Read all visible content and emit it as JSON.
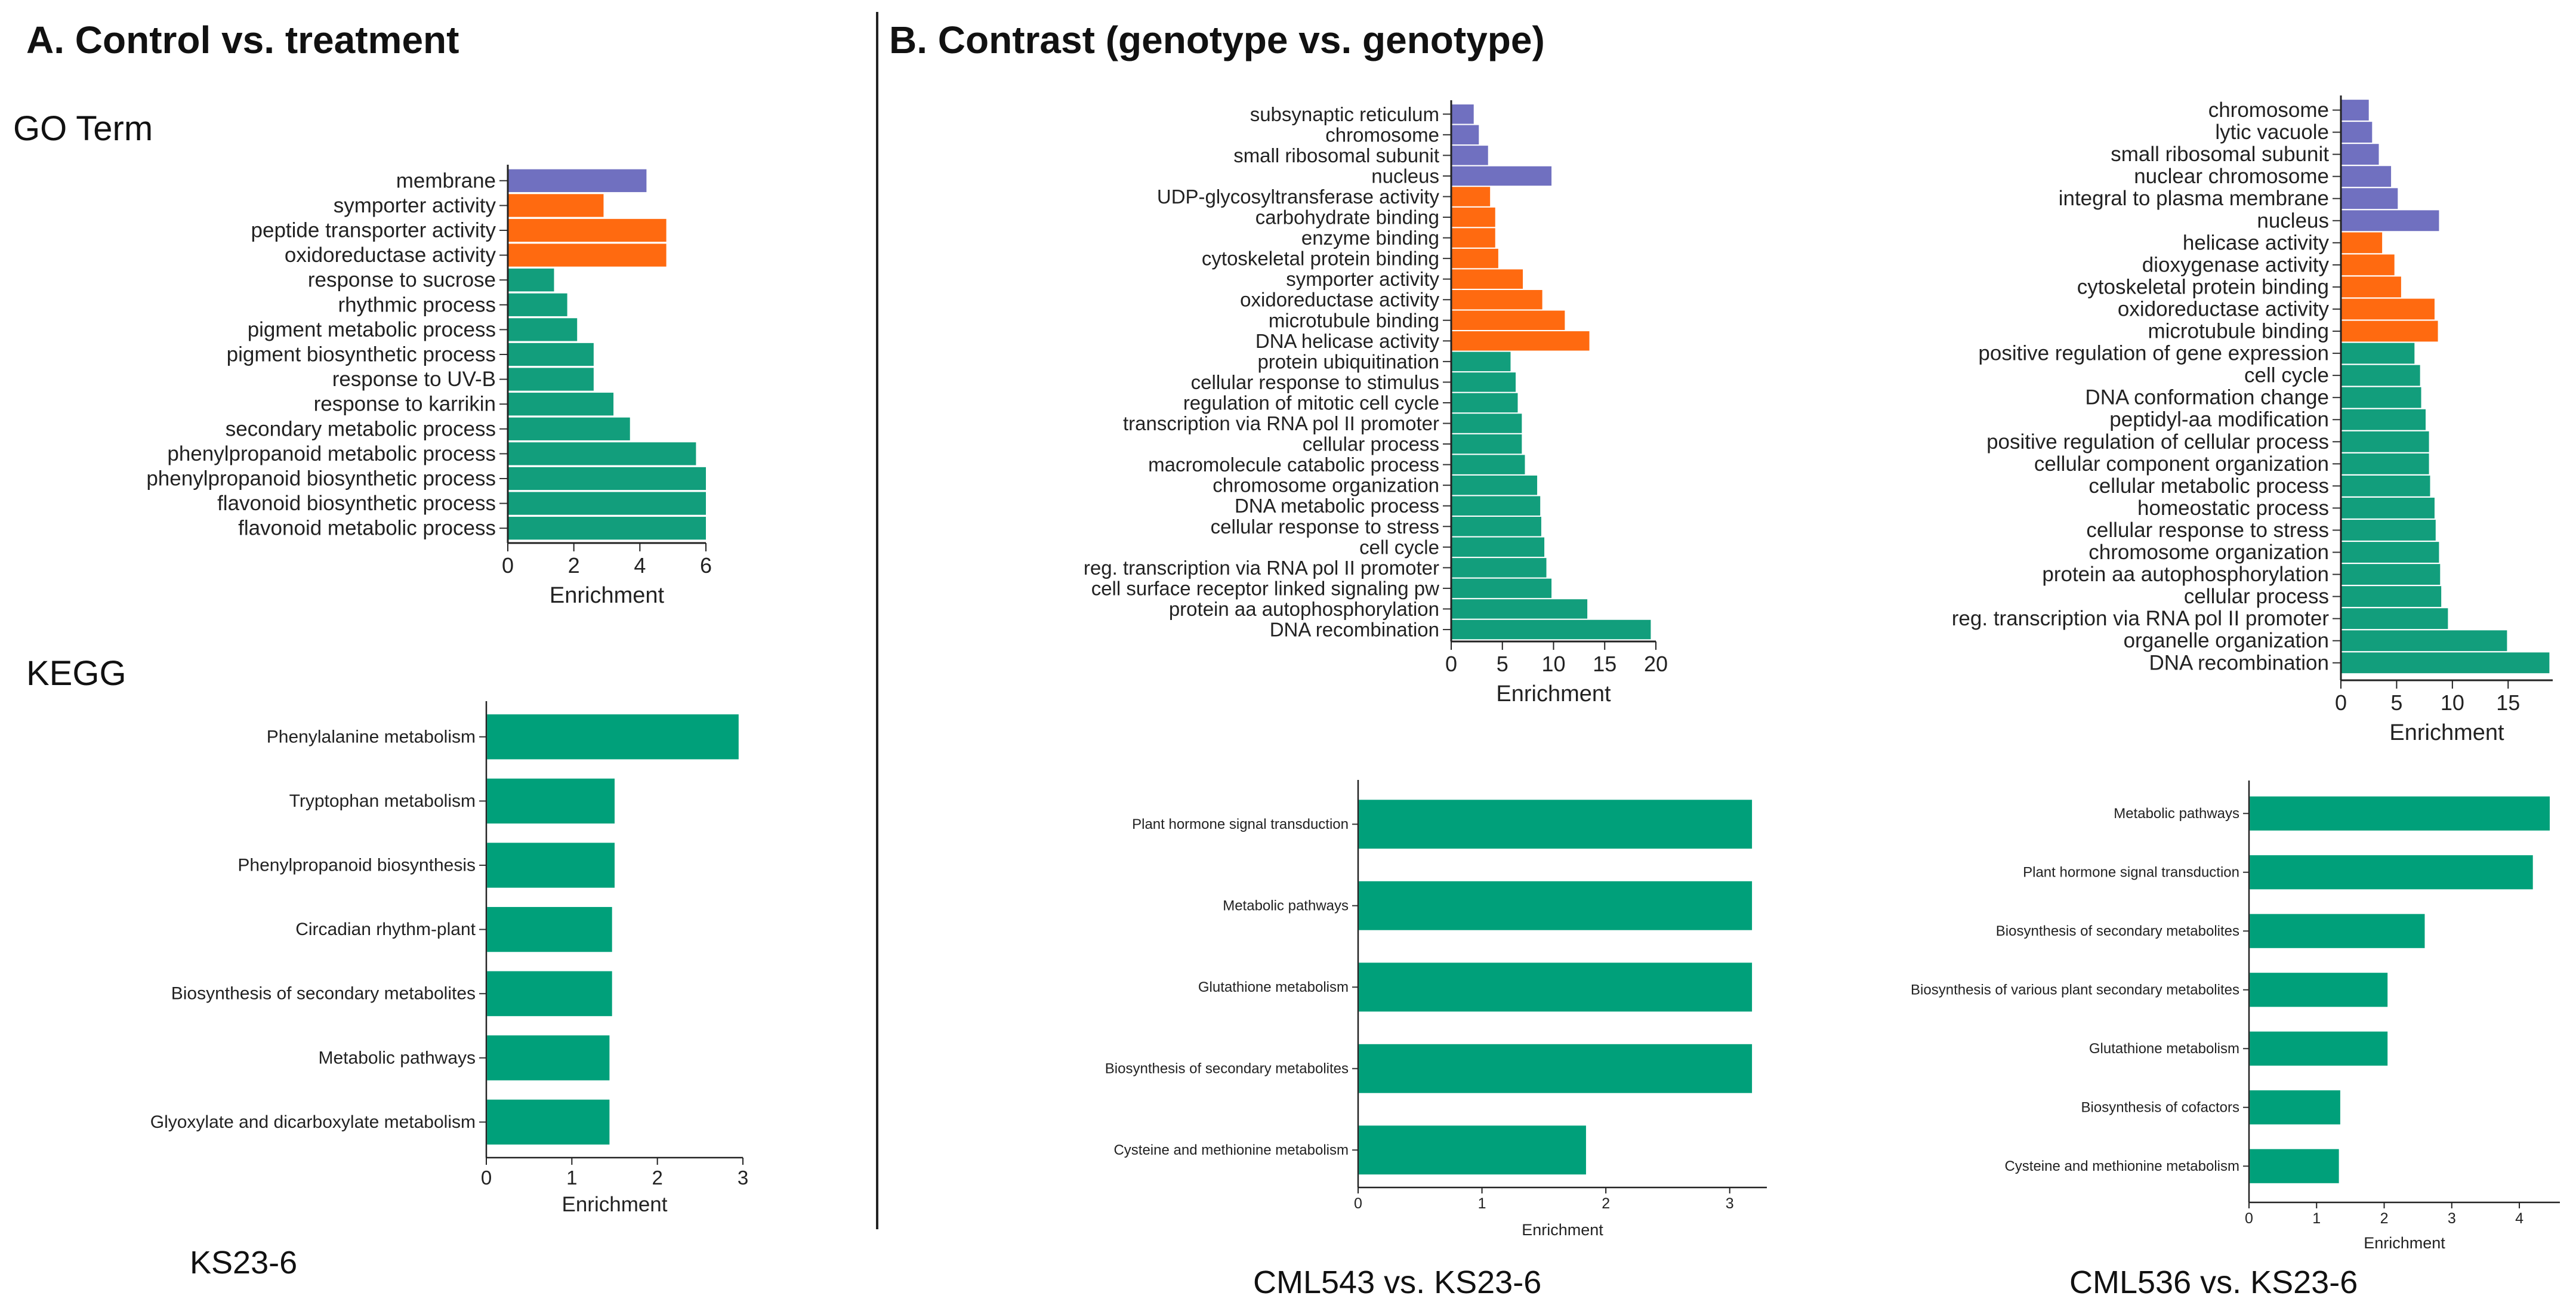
{
  "titles": {
    "panel_a": "A. Control vs. treatment",
    "panel_b": "B. Contrast (genotype vs. genotype)",
    "go_term": "GO Term",
    "kegg": "KEGG"
  },
  "captions": {
    "a": "KS23-6",
    "b1": "CML543 vs. KS23-6",
    "b2": "CML536 vs. KS23-6"
  },
  "colors": {
    "cellular_component": "#7070c0",
    "molecular_function": "#ff6a10",
    "biological_process": "#129e7c",
    "kegg": "#00a07a"
  },
  "chart_data": [
    {
      "id": "go_a",
      "type": "bar",
      "orientation": "horizontal",
      "xlabel": "Enrichment",
      "ylabel": "",
      "xlim": [
        0,
        6
      ],
      "ticks": [
        0,
        2,
        4,
        6
      ],
      "grid": false,
      "categories": [
        "membrane",
        "symporter activity",
        "peptide transporter activity",
        "oxidoreductase activity",
        "response to sucrose",
        "rhythmic process",
        "pigment metabolic process",
        "pigment biosynthetic process",
        "response to UV-B",
        "response to karrikin",
        "secondary metabolic process",
        "phenylpropanoid metabolic process",
        "phenylpropanoid biosynthetic process",
        "flavonoid biosynthetic process",
        "flavonoid metabolic process"
      ],
      "values": [
        4.2,
        2.9,
        4.8,
        4.8,
        1.4,
        1.8,
        2.1,
        2.6,
        2.6,
        3.2,
        3.7,
        5.7,
        6.0,
        6.0,
        6.0
      ],
      "groups": [
        "cc",
        "mf",
        "mf",
        "mf",
        "bp",
        "bp",
        "bp",
        "bp",
        "bp",
        "bp",
        "bp",
        "bp",
        "bp",
        "bp",
        "bp"
      ]
    },
    {
      "id": "kegg_a",
      "type": "bar",
      "orientation": "horizontal",
      "xlabel": "Enrichment",
      "ylabel": "",
      "xlim": [
        0,
        3
      ],
      "ticks": [
        0,
        1,
        2,
        3
      ],
      "grid": false,
      "categories": [
        "Phenylalanine metabolism",
        "Tryptophan metabolism",
        "Phenylpropanoid biosynthesis",
        "Circadian rhythm-plant",
        "Biosynthesis of secondary metabolites",
        "Metabolic pathways",
        "Glyoxylate and dicarboxylate metabolism"
      ],
      "values": [
        2.95,
        1.5,
        1.5,
        1.47,
        1.47,
        1.44,
        1.44
      ]
    },
    {
      "id": "go_b1",
      "type": "bar",
      "orientation": "horizontal",
      "xlabel": "Enrichment",
      "ylabel": "",
      "xlim": [
        0,
        20
      ],
      "ticks": [
        0,
        5,
        10,
        15,
        20
      ],
      "grid": false,
      "categories": [
        "subsynaptic reticulum",
        "chromosome",
        "small ribosomal subunit",
        "nucleus",
        "UDP-glycosyltransferase activity",
        "carbohydrate binding",
        "enzyme binding",
        "cytoskeletal protein binding",
        "symporter activity",
        "oxidoreductase activity",
        "microtubule binding",
        "DNA helicase activity",
        "protein ubiquitination",
        "cellular response to stimulus",
        "regulation of mitotic cell cycle",
        "transcription via RNA pol II promoter",
        "cellular process",
        "macromolecule catabolic process",
        "chromosome organization",
        "DNA metabolic process",
        "cellular response to stress",
        "cell cycle",
        "reg. transcription via RNA pol II promoter",
        "cell surface receptor linked signaling pw",
        "protein aa autophosphorylation",
        "DNA recombination"
      ],
      "values": [
        2.2,
        2.7,
        3.6,
        9.8,
        3.8,
        4.3,
        4.3,
        4.6,
        7.0,
        8.9,
        11.1,
        13.5,
        5.8,
        6.3,
        6.5,
        6.9,
        6.9,
        7.2,
        8.4,
        8.7,
        8.8,
        9.1,
        9.3,
        9.8,
        13.3,
        19.5
      ],
      "groups": [
        "cc",
        "cc",
        "cc",
        "cc",
        "mf",
        "mf",
        "mf",
        "mf",
        "mf",
        "mf",
        "mf",
        "mf",
        "bp",
        "bp",
        "bp",
        "bp",
        "bp",
        "bp",
        "bp",
        "bp",
        "bp",
        "bp",
        "bp",
        "bp",
        "bp",
        "bp"
      ]
    },
    {
      "id": "go_b2",
      "type": "bar",
      "orientation": "horizontal",
      "xlabel": "Enrichment",
      "ylabel": "",
      "xlim": [
        0,
        19
      ],
      "ticks": [
        0,
        5,
        10,
        15
      ],
      "grid": false,
      "categories": [
        "chromosome",
        "lytic vacuole",
        "small ribosomal subunit",
        "nuclear chromosome",
        "integral to plasma membrane",
        "nucleus",
        "helicase activity",
        "dioxygenase activity",
        "cytoskeletal protein binding",
        "oxidoreductase activity",
        "microtubule binding",
        "positive regulation of gene expression",
        "cell cycle",
        "DNA conformation change",
        "peptidyl-aa modification",
        "positive regulation of cellular process",
        "cellular component organization",
        "cellular metabolic process",
        "homeostatic process",
        "cellular response to stress",
        "chromosome organization",
        "protein aa autophosphorylation",
        "cellular process",
        "reg. transcription via RNA pol II promoter",
        "organelle organization",
        "DNA recombination"
      ],
      "values": [
        2.5,
        2.8,
        3.4,
        4.5,
        5.1,
        8.8,
        3.7,
        4.8,
        5.4,
        8.4,
        8.7,
        6.6,
        7.1,
        7.2,
        7.6,
        7.9,
        7.9,
        8.0,
        8.4,
        8.5,
        8.8,
        8.9,
        9.0,
        9.6,
        14.9,
        18.7
      ],
      "groups": [
        "cc",
        "cc",
        "cc",
        "cc",
        "cc",
        "cc",
        "mf",
        "mf",
        "mf",
        "mf",
        "mf",
        "bp",
        "bp",
        "bp",
        "bp",
        "bp",
        "bp",
        "bp",
        "bp",
        "bp",
        "bp",
        "bp",
        "bp",
        "bp",
        "bp",
        "bp"
      ]
    },
    {
      "id": "kegg_b1",
      "type": "bar",
      "orientation": "horizontal",
      "xlabel": "Enrichment",
      "ylabel": "",
      "xlim": [
        0,
        3.3
      ],
      "ticks": [
        0,
        1,
        2,
        3
      ],
      "grid": false,
      "categories": [
        "Plant hormone signal transduction",
        "Metabolic pathways",
        "Glutathione metabolism",
        "Biosynthesis of secondary metabolites",
        "Cysteine and methionine metabolism"
      ],
      "values": [
        3.18,
        3.18,
        3.18,
        3.18,
        1.84
      ]
    },
    {
      "id": "kegg_b2",
      "type": "bar",
      "orientation": "horizontal",
      "xlabel": "Enrichment",
      "ylabel": "",
      "xlim": [
        0,
        4.6
      ],
      "ticks": [
        0,
        1,
        2,
        3,
        4
      ],
      "grid": false,
      "categories": [
        "Metabolic pathways",
        "Plant hormone signal transduction",
        "Biosynthesis of secondary metabolites",
        "Biosynthesis of various plant secondary metabolites",
        "Glutathione metabolism",
        "Biosynthesis of cofactors",
        "Cysteine and methionine metabolism"
      ],
      "values": [
        4.45,
        4.2,
        2.6,
        2.05,
        2.05,
        1.35,
        1.33
      ]
    }
  ]
}
